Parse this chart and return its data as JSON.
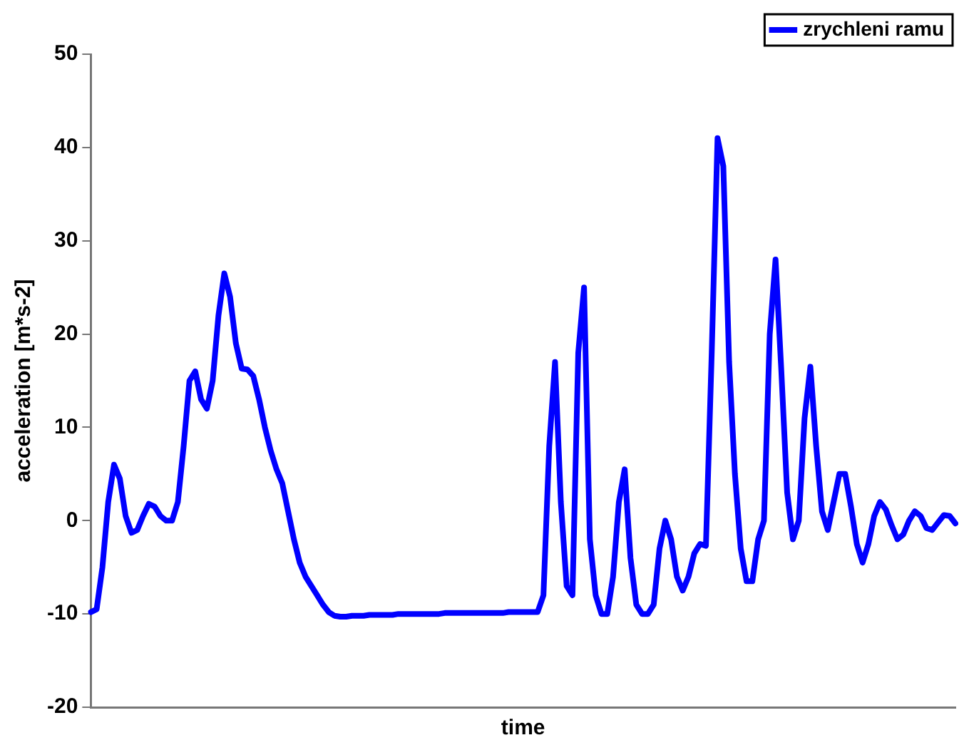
{
  "chart_data": {
    "type": "line",
    "xlabel": "time",
    "ylabel": "acceleration [m*s-2]",
    "tick_labels": "y",
    "grid": false,
    "legend": "top right",
    "marker": "none",
    "line_style": "solid",
    "ylim": [
      -20,
      50
    ],
    "yticks": [
      -20,
      -10,
      0,
      10,
      20,
      30,
      40,
      50
    ],
    "categories": [
      null,
      null,
      null,
      null,
      null,
      null,
      null,
      null,
      null,
      null,
      null,
      null,
      null,
      null,
      null,
      null,
      null,
      null,
      null,
      null,
      null,
      null,
      null,
      null,
      null,
      null,
      null,
      null,
      null,
      null,
      null,
      null,
      null,
      null,
      null,
      null,
      null,
      null,
      null,
      null,
      null,
      null,
      null,
      null,
      null,
      null,
      null,
      null,
      null,
      null,
      null,
      null,
      null,
      null,
      null,
      null,
      null,
      null,
      null,
      null,
      null,
      null,
      null,
      null,
      null,
      null,
      null,
      null,
      null,
      null,
      null,
      null,
      null,
      null,
      null,
      null,
      null,
      null,
      null,
      null,
      null,
      null,
      null,
      null,
      null,
      null,
      null,
      null,
      null,
      null,
      null,
      null,
      null,
      null,
      null,
      null,
      null,
      null,
      null,
      null,
      null,
      null,
      null,
      null,
      null,
      null,
      null,
      null,
      null,
      null,
      null,
      null,
      null,
      null,
      null,
      null,
      null,
      null,
      null,
      null,
      null,
      null,
      null,
      null,
      null,
      null,
      null,
      null,
      null,
      null,
      null,
      null,
      null,
      null,
      null,
      null,
      null,
      null,
      null,
      null,
      null,
      null,
      null,
      null,
      null,
      null,
      null,
      null,
      null,
      null
    ],
    "series": [
      {
        "name": "zrychleni ramu",
        "color": "#0000ff",
        "values": [
          -9.8,
          -9.5,
          -5,
          2,
          6,
          4.5,
          0.5,
          -1.3,
          -1,
          0.5,
          1.8,
          1.5,
          0.5,
          0,
          0,
          2,
          8,
          15,
          16,
          13,
          12,
          15,
          22,
          26.5,
          24,
          19,
          16.3,
          16.2,
          15.5,
          13,
          10,
          7.5,
          5.5,
          4,
          1,
          -2,
          -4.5,
          -6,
          -7,
          -8,
          -9,
          -9.8,
          -10.2,
          -10.3,
          -10.3,
          -10.2,
          -10.2,
          -10.2,
          -10.1,
          -10.1,
          -10.1,
          -10.1,
          -10.1,
          -10,
          -10,
          -10,
          -10,
          -10,
          -10,
          -10,
          -10,
          -9.9,
          -9.9,
          -9.9,
          -9.9,
          -9.9,
          -9.9,
          -9.9,
          -9.9,
          -9.9,
          -9.9,
          -9.9,
          -9.8,
          -9.8,
          -9.8,
          -9.8,
          -9.8,
          -9.8,
          -8,
          8,
          17,
          2,
          -7,
          -8,
          18,
          25,
          -2,
          -8,
          -10,
          -10,
          -6,
          2,
          5.5,
          -4,
          -9,
          -10,
          -10,
          -9,
          -3,
          0,
          -2,
          -6,
          -7.5,
          -6,
          -3.5,
          -2.5,
          -2.7,
          18,
          41,
          38,
          17,
          5,
          -3,
          -6.5,
          -6.5,
          -2,
          0,
          20,
          28,
          16,
          3,
          -2,
          0,
          11,
          16.5,
          8,
          1,
          -1,
          2,
          5,
          5,
          1.5,
          -2.5,
          -4.5,
          -2.5,
          0.5,
          2,
          1.2,
          -0.5,
          -2,
          -1.5,
          0,
          1,
          0.5,
          -0.8,
          -1,
          -0.2,
          0.6,
          0.5,
          -0.3
        ]
      }
    ]
  }
}
